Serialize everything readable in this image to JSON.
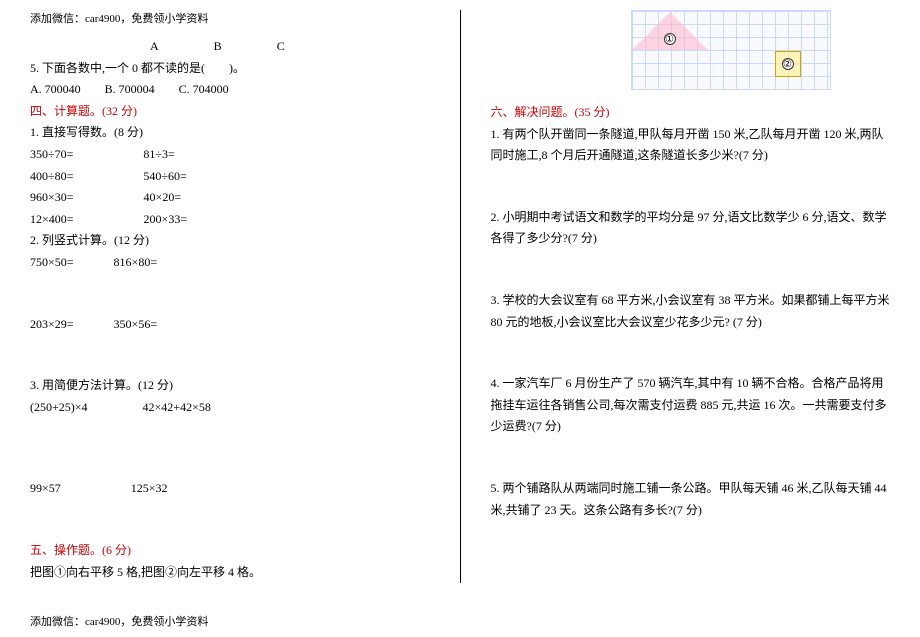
{
  "header": "添加微信：car4900，免费领小学资料",
  "footer": "添加微信：car4900，免费领小学资料",
  "left": {
    "abc": {
      "a": "A",
      "b": "B",
      "c": "C"
    },
    "q5": "5. 下面各数中,一个 0 都不读的是(　　)。",
    "q5opts": "A. 700040　　B. 700004　　C. 704000",
    "sec4_title": "四、计算题。(32 分)",
    "sec4_1": "1. 直接写得数。(8 分)",
    "r1a": "350÷70=",
    "r1b": "81÷3=",
    "r2a": "400÷80=",
    "r2b": "540÷60=",
    "r3a": "960×30=",
    "r3b": "40×20=",
    "r4a": "12×400=",
    "r4b": "200×33=",
    "sec4_2": "2. 列竖式计算。(12 分)",
    "r5a": "750×50=",
    "r5b": "816×80=",
    "r6a": "203×29=",
    "r6b": "350×56=",
    "sec4_3": "3. 用简便方法计算。(12 分)",
    "r7a": "(250+25)×4",
    "r7b": "42×42+42×58",
    "r8a": "99×57",
    "r8b": "125×32",
    "sec5_title": "五、操作题。(6 分)",
    "sec5_1": "把图①向右平移 5 格,把图②向左平移 4 格。"
  },
  "right": {
    "shape1": "①",
    "shape2": "②",
    "sec6_title": "六、解决问题。(35 分)",
    "q1": "1. 有两个队开凿同一条隧道,甲队每月开凿 150 米,乙队每月开凿 120 米,两队同时施工,8 个月后开通隧道,这条隧道长多少米?(7 分)",
    "q2": "2. 小明期中考试语文和数学的平均分是 97 分,语文比数学少 6 分,语文、数学各得了多少分?(7 分)",
    "q3": "3. 学校的大会议室有 68 平方米,小会议室有 38 平方米。如果都铺上每平方米 80 元的地板,小会议室比大会议室少花多少元?  (7 分)",
    "q4": "4. 一家汽车厂 6 月份生产了 570 辆汽车,其中有 10 辆不合格。合格产品将用拖挂车运往各销售公司,每次需支付运费 885 元,共运 16 次。一共需要支付多少运费?(7 分)",
    "q5": "5. 两个铺路队从两端同时施工铺一条公路。甲队每天铺 46 米,乙队每天铺 44 米,共铺了 23 天。这条公路有多长?(7 分)"
  }
}
